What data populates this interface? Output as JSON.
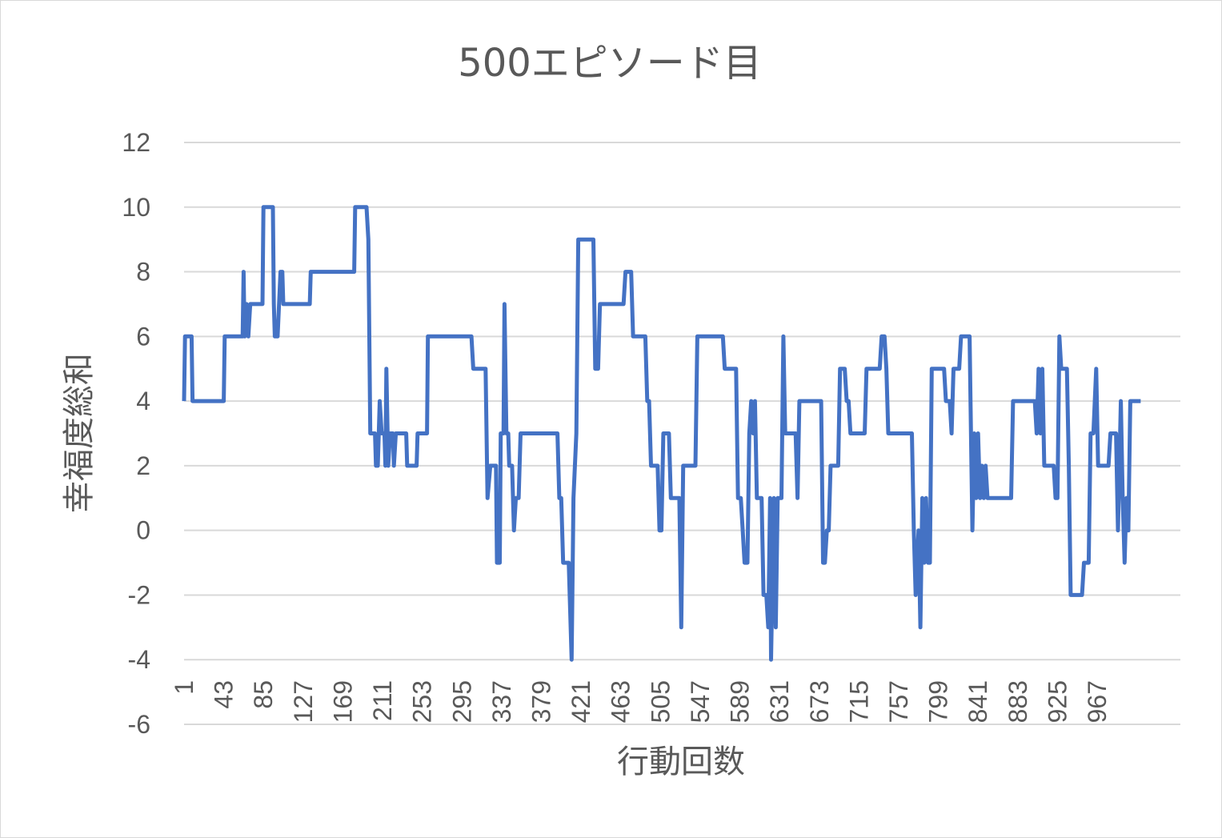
{
  "chart_data": {
    "type": "line",
    "title": "500エピソード目",
    "xlabel": "行動回数",
    "ylabel": "幸福度総和",
    "ylim": [
      -6,
      12
    ],
    "y_ticks": [
      12,
      10,
      8,
      6,
      4,
      2,
      0,
      -2,
      -4,
      -6
    ],
    "x_tick_labels": [
      "1",
      "43",
      "85",
      "127",
      "169",
      "211",
      "253",
      "295",
      "337",
      "379",
      "421",
      "463",
      "505",
      "547",
      "589",
      "631",
      "673",
      "715",
      "757",
      "799",
      "841",
      "883",
      "925",
      "967"
    ],
    "x_range": [
      1,
      1000
    ],
    "grid": true,
    "legend": "none",
    "colors": {
      "series": "#4472c4",
      "grid": "#d9d9d9",
      "text": "#595959"
    },
    "series": [
      {
        "points": [
          [
            1,
            4
          ],
          [
            2,
            6
          ],
          [
            9,
            6
          ],
          [
            10,
            4
          ],
          [
            43,
            4
          ],
          [
            44,
            6
          ],
          [
            63,
            6
          ],
          [
            64,
            8
          ],
          [
            65,
            6
          ],
          [
            67,
            7
          ],
          [
            69,
            6
          ],
          [
            71,
            7
          ],
          [
            84,
            7
          ],
          [
            85,
            10
          ],
          [
            95,
            10
          ],
          [
            96,
            7
          ],
          [
            97,
            6
          ],
          [
            100,
            6
          ],
          [
            103,
            8
          ],
          [
            105,
            8
          ],
          [
            106,
            7
          ],
          [
            134,
            7
          ],
          [
            135,
            8
          ],
          [
            181,
            8
          ],
          [
            182,
            10
          ],
          [
            194,
            10
          ],
          [
            196,
            9
          ],
          [
            198,
            3
          ],
          [
            203,
            3
          ],
          [
            204,
            2
          ],
          [
            206,
            2
          ],
          [
            208,
            4
          ],
          [
            210,
            3
          ],
          [
            213,
            3
          ],
          [
            214,
            2
          ],
          [
            215,
            5
          ],
          [
            217,
            2
          ],
          [
            219,
            3
          ],
          [
            222,
            3
          ],
          [
            223,
            2
          ],
          [
            225,
            3
          ],
          [
            236,
            3
          ],
          [
            237,
            2
          ],
          [
            247,
            2
          ],
          [
            248,
            3
          ],
          [
            258,
            3
          ],
          [
            259,
            6
          ],
          [
            305,
            6
          ],
          [
            307,
            5
          ],
          [
            320,
            5
          ],
          [
            322,
            1
          ],
          [
            325,
            2
          ],
          [
            331,
            2
          ],
          [
            332,
            -1
          ],
          [
            335,
            -1
          ],
          [
            336,
            3
          ],
          [
            339,
            3
          ],
          [
            340,
            7
          ],
          [
            342,
            3
          ],
          [
            344,
            3
          ],
          [
            345,
            2
          ],
          [
            348,
            2
          ],
          [
            350,
            0
          ],
          [
            352,
            1
          ],
          [
            355,
            1
          ],
          [
            357,
            3
          ],
          [
            396,
            3
          ],
          [
            398,
            1
          ],
          [
            400,
            1
          ],
          [
            402,
            -1
          ],
          [
            408,
            -1
          ],
          [
            411,
            -4
          ],
          [
            413,
            1
          ],
          [
            416,
            3
          ],
          [
            418,
            9
          ],
          [
            434,
            9
          ],
          [
            436,
            5
          ],
          [
            439,
            5
          ],
          [
            441,
            7
          ],
          [
            466,
            7
          ],
          [
            468,
            8
          ],
          [
            474,
            8
          ],
          [
            476,
            6
          ],
          [
            489,
            6
          ],
          [
            491,
            4
          ],
          [
            493,
            4
          ],
          [
            495,
            2
          ],
          [
            502,
            2
          ],
          [
            504,
            0
          ],
          [
            506,
            0
          ],
          [
            508,
            3
          ],
          [
            514,
            3
          ],
          [
            516,
            1
          ],
          [
            525,
            1
          ],
          [
            527,
            -3
          ],
          [
            529,
            2
          ],
          [
            542,
            2
          ],
          [
            544,
            6
          ],
          [
            571,
            6
          ],
          [
            573,
            5
          ],
          [
            585,
            5
          ],
          [
            587,
            1
          ],
          [
            590,
            1
          ],
          [
            592,
            0
          ],
          [
            594,
            -1
          ],
          [
            597,
            -1
          ],
          [
            599,
            3
          ],
          [
            601,
            4
          ],
          [
            603,
            3
          ],
          [
            605,
            4
          ],
          [
            607,
            1
          ],
          [
            612,
            1
          ],
          [
            614,
            -2
          ],
          [
            617,
            -2
          ],
          [
            619,
            -3
          ],
          [
            621,
            1
          ],
          [
            622,
            -4
          ],
          [
            625,
            1
          ],
          [
            627,
            -3
          ],
          [
            629,
            1
          ],
          [
            633,
            1
          ],
          [
            635,
            6
          ],
          [
            637,
            3
          ],
          [
            648,
            3
          ],
          [
            650,
            1
          ],
          [
            652,
            4
          ],
          [
            675,
            4
          ],
          [
            677,
            -1
          ],
          [
            679,
            -1
          ],
          [
            681,
            0
          ],
          [
            683,
            0
          ],
          [
            685,
            2
          ],
          [
            693,
            2
          ],
          [
            695,
            5
          ],
          [
            700,
            5
          ],
          [
            702,
            4
          ],
          [
            704,
            4
          ],
          [
            706,
            3
          ],
          [
            721,
            3
          ],
          [
            723,
            5
          ],
          [
            737,
            5
          ],
          [
            739,
            6
          ],
          [
            742,
            6
          ],
          [
            744,
            5
          ],
          [
            746,
            3
          ],
          [
            771,
            3
          ],
          [
            773,
            0
          ],
          [
            775,
            -2
          ],
          [
            778,
            0
          ],
          [
            780,
            -3
          ],
          [
            782,
            1
          ],
          [
            784,
            -1
          ],
          [
            786,
            1
          ],
          [
            788,
            -1
          ],
          [
            790,
            -1
          ],
          [
            792,
            5
          ],
          [
            805,
            5
          ],
          [
            807,
            4
          ],
          [
            811,
            4
          ],
          [
            813,
            3
          ],
          [
            815,
            5
          ],
          [
            821,
            5
          ],
          [
            823,
            6
          ],
          [
            832,
            6
          ],
          [
            834,
            2
          ],
          [
            835,
            0
          ],
          [
            837,
            3
          ],
          [
            839,
            1
          ],
          [
            841,
            3
          ],
          [
            843,
            1
          ],
          [
            845,
            2
          ],
          [
            847,
            1
          ],
          [
            849,
            2
          ],
          [
            851,
            1
          ],
          [
            876,
            1
          ],
          [
            878,
            4
          ],
          [
            901,
            4
          ],
          [
            903,
            3
          ],
          [
            905,
            5
          ],
          [
            907,
            3
          ],
          [
            909,
            5
          ],
          [
            911,
            2
          ],
          [
            921,
            2
          ],
          [
            923,
            1
          ],
          [
            925,
            1
          ],
          [
            927,
            6
          ],
          [
            929,
            5
          ],
          [
            935,
            5
          ],
          [
            937,
            2
          ],
          [
            939,
            -2
          ],
          [
            951,
            -2
          ],
          [
            953,
            -1
          ],
          [
            958,
            -1
          ],
          [
            960,
            3
          ],
          [
            963,
            3
          ],
          [
            966,
            5
          ],
          [
            968,
            2
          ],
          [
            979,
            2
          ],
          [
            981,
            3
          ],
          [
            987,
            3
          ],
          [
            989,
            0
          ],
          [
            992,
            4
          ],
          [
            994,
            1
          ],
          [
            996,
            -1
          ],
          [
            998,
            1
          ],
          [
            1000,
            0
          ],
          [
            1002,
            4
          ],
          [
            1013,
            4
          ]
        ]
      }
    ]
  }
}
